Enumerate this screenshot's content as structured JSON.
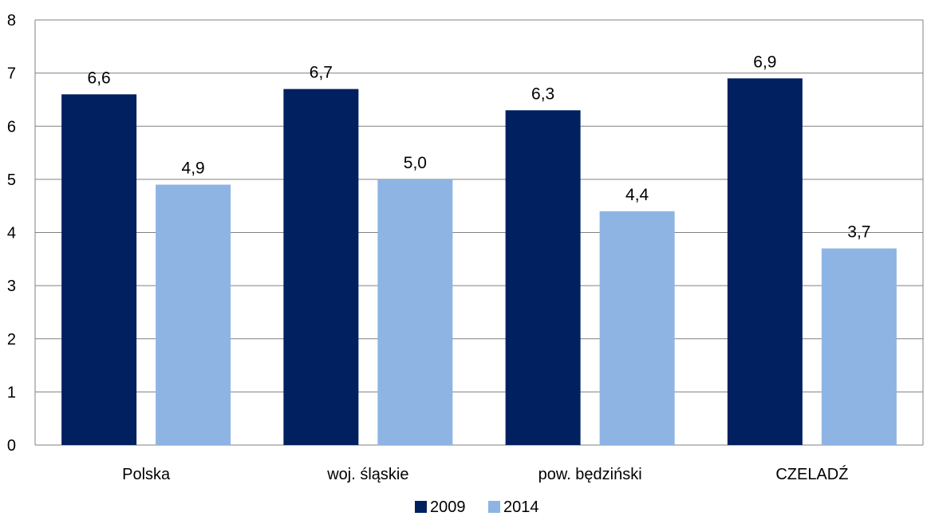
{
  "chart_data": {
    "type": "bar",
    "title": "",
    "xlabel": "",
    "ylabel": "",
    "categories": [
      "Polska",
      "woj. śląskie",
      "pow. będziński",
      "CZELADŹ"
    ],
    "series": [
      {
        "name": "2009",
        "values": [
          6.6,
          6.7,
          6.3,
          6.9
        ],
        "labels": [
          "6,6",
          "6,7",
          "6,3",
          "6,9"
        ],
        "color": "#002060"
      },
      {
        "name": "2014",
        "values": [
          4.9,
          5.0,
          4.4,
          3.7
        ],
        "labels": [
          "4,9",
          "5,0",
          "4,4",
          "3,7"
        ],
        "color": "#8EB4E3"
      }
    ],
    "ylim": [
      0,
      8
    ],
    "yticks": [
      0,
      1,
      2,
      3,
      4,
      5,
      6,
      7,
      8
    ],
    "grid": true,
    "gridColor": "#808080",
    "legend": "bottom"
  }
}
